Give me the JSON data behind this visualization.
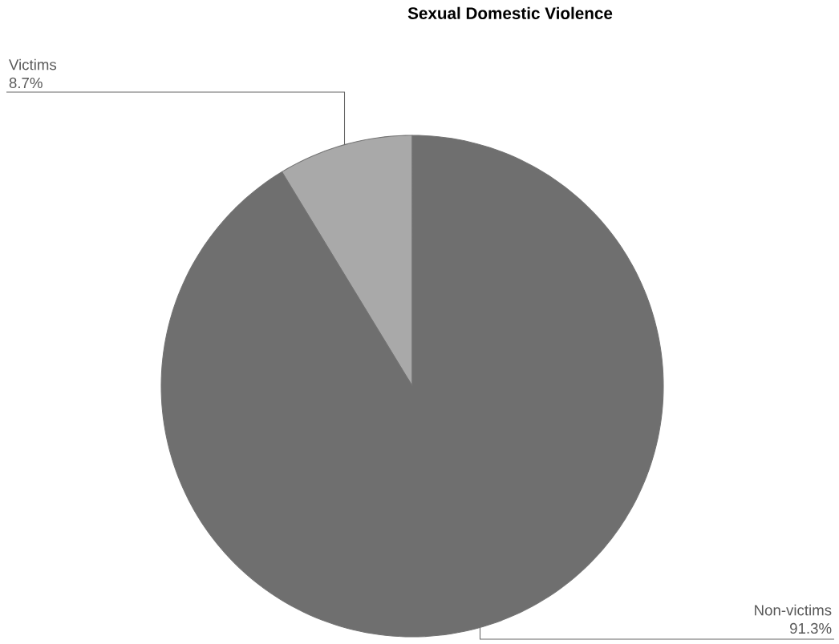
{
  "chart_data": {
    "type": "pie",
    "title": "Sexual Domestic Violence",
    "categories": [
      "Victims",
      "Non-victims"
    ],
    "values": [
      8.7,
      91.3
    ],
    "colors": [
      "#a9a9a9",
      "#6f6f6f"
    ],
    "value_labels": [
      "8.7%",
      "91.3%"
    ]
  }
}
